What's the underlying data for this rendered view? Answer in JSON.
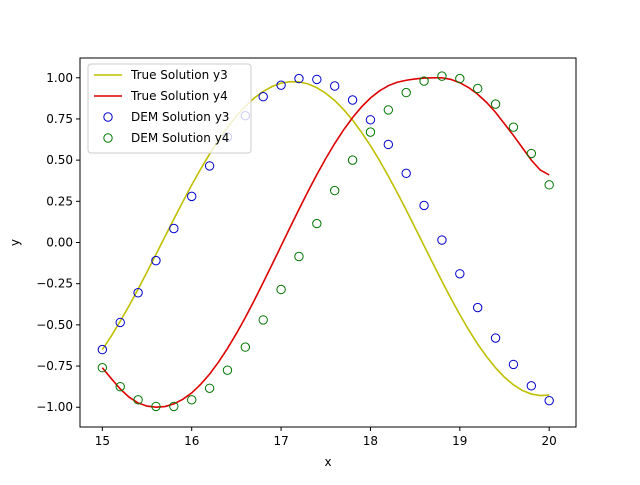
{
  "chart_data": {
    "type": "line",
    "xlabel": "x",
    "ylabel": "y",
    "xlim": [
      14.75,
      20.3
    ],
    "ylim": [
      -1.12,
      1.12
    ],
    "xticks": [
      15,
      16,
      17,
      18,
      19,
      20
    ],
    "xtick_labels": [
      "15",
      "16",
      "17",
      "18",
      "19",
      "20"
    ],
    "yticks": [
      -1.0,
      -0.75,
      -0.5,
      -0.25,
      0.0,
      0.25,
      0.5,
      0.75,
      1.0
    ],
    "ytick_labels": [
      "−1.00",
      "−0.75",
      "−0.50",
      "−0.25",
      "0.00",
      "0.25",
      "0.50",
      "0.75",
      "1.00"
    ],
    "grid": false,
    "legend_position": "upper left",
    "series": [
      {
        "name": "True Solution y3",
        "kind": "line",
        "color": "#bfbf00",
        "x": [
          15.0,
          15.1,
          15.2,
          15.3,
          15.4,
          15.5,
          15.6,
          15.7,
          15.8,
          15.9,
          16.0,
          16.1,
          16.2,
          16.3,
          16.4,
          16.5,
          16.6,
          16.7,
          16.8,
          16.9,
          17.0,
          17.1,
          17.2,
          17.3,
          17.4,
          17.5,
          17.6,
          17.7,
          17.8,
          17.9,
          18.0,
          18.1,
          18.2,
          18.3,
          18.4,
          18.5,
          18.6,
          18.7,
          18.8,
          18.9,
          19.0,
          19.1,
          19.2,
          19.3,
          19.4,
          19.5,
          19.6,
          19.7,
          19.8,
          19.9,
          20.0
        ],
        "y": [
          -0.65,
          -0.568,
          -0.478,
          -0.383,
          -0.283,
          -0.179,
          -0.072,
          0.035,
          0.142,
          0.247,
          0.349,
          0.446,
          0.537,
          0.622,
          0.699,
          0.768,
          0.827,
          0.877,
          0.917,
          0.947,
          0.967,
          0.976,
          0.975,
          0.963,
          0.94,
          0.906,
          0.862,
          0.807,
          0.743,
          0.669,
          0.588,
          0.499,
          0.403,
          0.302,
          0.197,
          0.089,
          -0.02,
          -0.128,
          -0.235,
          -0.339,
          -0.438,
          -0.531,
          -0.617,
          -0.693,
          -0.761,
          -0.818,
          -0.864,
          -0.898,
          -0.92,
          -0.929,
          -0.926
        ]
      },
      {
        "name": "True Solution y4",
        "kind": "line",
        "color": "#dd0000",
        "x": [
          15.0,
          15.1,
          15.2,
          15.3,
          15.4,
          15.5,
          15.6,
          15.7,
          15.8,
          15.9,
          16.0,
          16.1,
          16.2,
          16.3,
          16.4,
          16.5,
          16.6,
          16.7,
          16.8,
          16.9,
          17.0,
          17.1,
          17.2,
          17.3,
          17.4,
          17.5,
          17.6,
          17.7,
          17.8,
          17.9,
          18.0,
          18.1,
          18.2,
          18.3,
          18.4,
          18.5,
          18.6,
          18.7,
          18.8,
          18.9,
          19.0,
          19.1,
          19.2,
          19.3,
          19.4,
          19.5,
          19.6,
          19.7,
          19.8,
          19.9,
          20.0
        ],
        "y": [
          -0.76,
          -0.826,
          -0.889,
          -0.939,
          -0.974,
          -0.993,
          -1.0,
          -0.996,
          -0.98,
          -0.952,
          -0.913,
          -0.861,
          -0.799,
          -0.726,
          -0.643,
          -0.553,
          -0.455,
          -0.351,
          -0.243,
          -0.133,
          -0.021,
          0.091,
          0.201,
          0.309,
          0.412,
          0.51,
          0.601,
          0.684,
          0.758,
          0.823,
          0.877,
          0.92,
          0.952,
          0.973,
          0.985,
          0.993,
          0.998,
          1.0,
          1.0,
          0.99,
          0.97,
          0.94,
          0.9,
          0.85,
          0.79,
          0.72,
          0.65,
          0.575,
          0.5,
          0.44,
          0.41
        ]
      },
      {
        "name": "DEM Solution y3",
        "kind": "scatter",
        "color": "#0000cc",
        "x": [
          15.0,
          15.2,
          15.4,
          15.6,
          15.8,
          16.0,
          16.2,
          16.4,
          16.6,
          16.8,
          17.0,
          17.2,
          17.4,
          17.6,
          17.8,
          18.0,
          18.2,
          18.4,
          18.6,
          18.8,
          19.0,
          19.2,
          19.4,
          19.6,
          19.8,
          20.0
        ],
        "y": [
          -0.65,
          -0.485,
          -0.305,
          -0.11,
          0.085,
          0.28,
          0.465,
          0.64,
          0.77,
          0.885,
          0.955,
          0.995,
          0.99,
          0.95,
          0.865,
          0.745,
          0.595,
          0.42,
          0.225,
          0.015,
          -0.19,
          -0.395,
          -0.58,
          -0.74,
          -0.87,
          -0.96
        ]
      },
      {
        "name": "DEM Solution y4",
        "kind": "scatter",
        "color": "#007700",
        "x": [
          15.0,
          15.2,
          15.4,
          15.6,
          15.8,
          16.0,
          16.2,
          16.4,
          16.6,
          16.8,
          17.0,
          17.2,
          17.4,
          17.6,
          17.8,
          18.0,
          18.2,
          18.4,
          18.6,
          18.8,
          19.0,
          19.2,
          19.4,
          19.6,
          19.8,
          20.0
        ],
        "y": [
          -0.76,
          -0.875,
          -0.955,
          -0.995,
          -0.995,
          -0.955,
          -0.885,
          -0.775,
          -0.635,
          -0.47,
          -0.285,
          -0.085,
          0.115,
          0.315,
          0.5,
          0.67,
          0.805,
          0.91,
          0.98,
          1.01,
          0.995,
          0.935,
          0.84,
          0.7,
          0.54,
          0.35
        ]
      }
    ]
  }
}
